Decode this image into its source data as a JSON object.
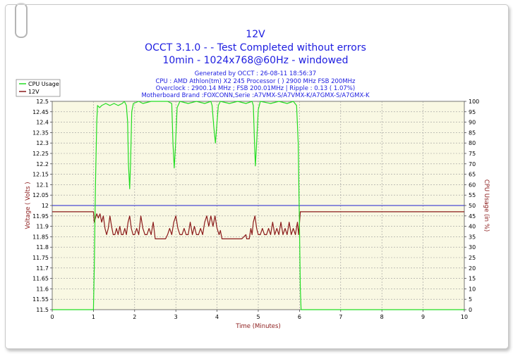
{
  "chart_data": {
    "type": "line",
    "title": "12V",
    "subtitle_lines": [
      "OCCT 3.1.0 -  - Test Completed without errors",
      "10min - 1024x768@60Hz - windowed"
    ],
    "info_lines": [
      "Generated by OCCT : 26-08-11 18:56:37",
      "CPU : AMD Athlon(tm) X2 245 Processor (  ) 2900 MHz FSB 200MHz",
      "Overclock : 2900.14 MHz ; FSB 200.01MHz | Ripple : 0.13 ( 1.07%)",
      "Motherboard Brand :FOXCONN,Serie :A7VMX-S/A7VMX-K/A7GMX-S/A7GMX-K"
    ],
    "xlabel": "Time (Minutes)",
    "ylabel": "Voltage ( Volts )",
    "y2label": "CPU Usage (in %)",
    "xlim": [
      0,
      10
    ],
    "ylim": [
      11.5,
      12.5
    ],
    "y2lim": [
      0,
      100
    ],
    "x_ticks": [
      "0",
      "1",
      "2",
      "3",
      "4",
      "5",
      "6",
      "7",
      "8",
      "9",
      "10"
    ],
    "y_ticks": [
      "11.5",
      "11.55",
      "11.6",
      "11.65",
      "11.7",
      "11.75",
      "11.8",
      "11.85",
      "11.9",
      "11.95",
      "12",
      "12.05",
      "12.1",
      "12.15",
      "12.2",
      "12.25",
      "12.3",
      "12.35",
      "12.4",
      "12.45",
      "12.5"
    ],
    "y2_ticks": [
      "0",
      "5",
      "10",
      "15",
      "20",
      "25",
      "30",
      "35",
      "40",
      "45",
      "50",
      "55",
      "60",
      "65",
      "70",
      "75",
      "80",
      "85",
      "90",
      "95",
      "100"
    ],
    "grid": true,
    "legend_position": "top-left",
    "reference_line": {
      "y": 12.0,
      "color": "#2020d0"
    },
    "series": [
      {
        "name": "CPU Usage",
        "axis": "right",
        "color": "#22dd22",
        "points": [
          [
            0,
            0
          ],
          [
            1.0,
            0
          ],
          [
            1.02,
            20
          ],
          [
            1.05,
            60
          ],
          [
            1.08,
            90
          ],
          [
            1.1,
            98
          ],
          [
            1.15,
            97
          ],
          [
            1.2,
            98
          ],
          [
            1.3,
            99
          ],
          [
            1.4,
            98
          ],
          [
            1.5,
            99
          ],
          [
            1.6,
            98
          ],
          [
            1.7,
            99
          ],
          [
            1.75,
            100
          ],
          [
            1.8,
            98
          ],
          [
            1.83,
            90
          ],
          [
            1.85,
            70
          ],
          [
            1.88,
            58
          ],
          [
            1.9,
            70
          ],
          [
            1.93,
            95
          ],
          [
            1.97,
            99
          ],
          [
            2.1,
            100
          ],
          [
            2.2,
            99
          ],
          [
            2.4,
            100
          ],
          [
            2.6,
            100
          ],
          [
            2.8,
            100
          ],
          [
            2.9,
            99
          ],
          [
            2.93,
            80
          ],
          [
            2.96,
            68
          ],
          [
            2.99,
            78
          ],
          [
            3.03,
            97
          ],
          [
            3.1,
            100
          ],
          [
            3.3,
            99
          ],
          [
            3.5,
            100
          ],
          [
            3.7,
            99
          ],
          [
            3.85,
            100
          ],
          [
            3.88,
            98
          ],
          [
            3.92,
            88
          ],
          [
            3.96,
            80
          ],
          [
            4.0,
            90
          ],
          [
            4.03,
            98
          ],
          [
            4.08,
            100
          ],
          [
            4.3,
            99
          ],
          [
            4.5,
            100
          ],
          [
            4.7,
            99
          ],
          [
            4.85,
            100
          ],
          [
            4.88,
            98
          ],
          [
            4.91,
            80
          ],
          [
            4.93,
            69
          ],
          [
            4.96,
            80
          ],
          [
            5.0,
            96
          ],
          [
            5.05,
            100
          ],
          [
            5.3,
            99
          ],
          [
            5.5,
            100
          ],
          [
            5.7,
            99
          ],
          [
            5.85,
            100
          ],
          [
            5.93,
            98
          ],
          [
            5.97,
            80
          ],
          [
            6.0,
            40
          ],
          [
            6.02,
            10
          ],
          [
            6.04,
            0
          ],
          [
            10,
            0
          ]
        ]
      },
      {
        "name": "12V",
        "axis": "left",
        "color": "#8b1a1a",
        "points": [
          [
            0,
            11.97
          ],
          [
            1.0,
            11.97
          ],
          [
            1.02,
            11.92
          ],
          [
            1.05,
            11.94
          ],
          [
            1.08,
            11.96
          ],
          [
            1.12,
            11.94
          ],
          [
            1.16,
            11.96
          ],
          [
            1.2,
            11.92
          ],
          [
            1.24,
            11.95
          ],
          [
            1.28,
            11.89
          ],
          [
            1.32,
            11.86
          ],
          [
            1.36,
            11.89
          ],
          [
            1.4,
            11.95
          ],
          [
            1.44,
            11.9
          ],
          [
            1.48,
            11.86
          ],
          [
            1.52,
            11.86
          ],
          [
            1.56,
            11.89
          ],
          [
            1.6,
            11.86
          ],
          [
            1.64,
            11.9
          ],
          [
            1.68,
            11.86
          ],
          [
            1.72,
            11.86
          ],
          [
            1.76,
            11.89
          ],
          [
            1.8,
            11.86
          ],
          [
            1.84,
            11.92
          ],
          [
            1.88,
            11.95
          ],
          [
            1.92,
            11.89
          ],
          [
            1.96,
            11.86
          ],
          [
            2.0,
            11.86
          ],
          [
            2.05,
            11.89
          ],
          [
            2.1,
            11.86
          ],
          [
            2.15,
            11.95
          ],
          [
            2.2,
            11.89
          ],
          [
            2.25,
            11.86
          ],
          [
            2.3,
            11.86
          ],
          [
            2.35,
            11.89
          ],
          [
            2.4,
            11.86
          ],
          [
            2.45,
            11.92
          ],
          [
            2.5,
            11.84
          ],
          [
            2.55,
            11.84
          ],
          [
            2.6,
            11.84
          ],
          [
            2.65,
            11.84
          ],
          [
            2.7,
            11.84
          ],
          [
            2.75,
            11.84
          ],
          [
            2.8,
            11.86
          ],
          [
            2.85,
            11.89
          ],
          [
            2.9,
            11.86
          ],
          [
            2.95,
            11.92
          ],
          [
            3.0,
            11.95
          ],
          [
            3.05,
            11.89
          ],
          [
            3.1,
            11.86
          ],
          [
            3.15,
            11.86
          ],
          [
            3.2,
            11.89
          ],
          [
            3.25,
            11.86
          ],
          [
            3.3,
            11.86
          ],
          [
            3.35,
            11.92
          ],
          [
            3.4,
            11.86
          ],
          [
            3.45,
            11.9
          ],
          [
            3.5,
            11.86
          ],
          [
            3.55,
            11.86
          ],
          [
            3.6,
            11.89
          ],
          [
            3.65,
            11.86
          ],
          [
            3.7,
            11.92
          ],
          [
            3.75,
            11.95
          ],
          [
            3.8,
            11.9
          ],
          [
            3.85,
            11.95
          ],
          [
            3.9,
            11.9
          ],
          [
            3.95,
            11.95
          ],
          [
            4.0,
            11.89
          ],
          [
            4.05,
            11.86
          ],
          [
            4.08,
            11.88
          ],
          [
            4.12,
            11.84
          ],
          [
            4.2,
            11.84
          ],
          [
            4.3,
            11.84
          ],
          [
            4.4,
            11.84
          ],
          [
            4.5,
            11.84
          ],
          [
            4.6,
            11.84
          ],
          [
            4.7,
            11.86
          ],
          [
            4.72,
            11.84
          ],
          [
            4.78,
            11.84
          ],
          [
            4.82,
            11.89
          ],
          [
            4.85,
            11.86
          ],
          [
            4.88,
            11.92
          ],
          [
            4.92,
            11.95
          ],
          [
            4.96,
            11.89
          ],
          [
            5.0,
            11.86
          ],
          [
            5.05,
            11.86
          ],
          [
            5.1,
            11.89
          ],
          [
            5.15,
            11.86
          ],
          [
            5.2,
            11.86
          ],
          [
            5.25,
            11.89
          ],
          [
            5.3,
            11.86
          ],
          [
            5.35,
            11.92
          ],
          [
            5.4,
            11.86
          ],
          [
            5.45,
            11.89
          ],
          [
            5.5,
            11.86
          ],
          [
            5.55,
            11.92
          ],
          [
            5.6,
            11.86
          ],
          [
            5.65,
            11.89
          ],
          [
            5.7,
            11.86
          ],
          [
            5.75,
            11.92
          ],
          [
            5.8,
            11.86
          ],
          [
            5.85,
            11.89
          ],
          [
            5.9,
            11.86
          ],
          [
            5.95,
            11.92
          ],
          [
            5.98,
            11.86
          ],
          [
            6.02,
            11.97
          ],
          [
            10,
            11.97
          ]
        ]
      }
    ]
  },
  "colors": {
    "plot_background": "#f9f8e3",
    "grid": "#9a9a9a",
    "title_text": "#1c1ce0",
    "axis_label_text": "#8b1a1a"
  }
}
